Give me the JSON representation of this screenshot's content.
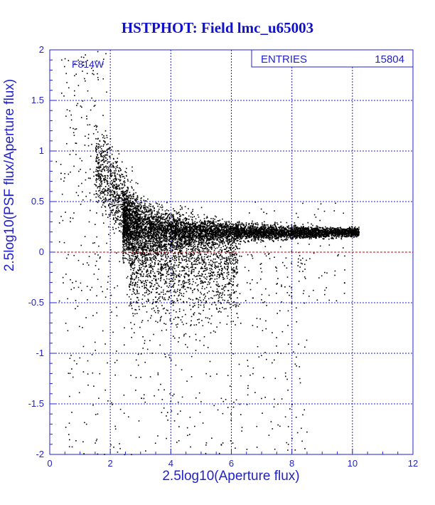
{
  "chart_data": {
    "type": "scatter",
    "title": "HSTPHOT: Field lmc_u65003",
    "xlabel": "2.5log10(Aperture flux)",
    "ylabel": "2.5log10(PSF flux/Aperture flux)",
    "xlim": [
      0,
      12
    ],
    "ylim": [
      -2,
      2
    ],
    "xticks": [
      "0",
      "2",
      "4",
      "6",
      "8",
      "10",
      "12"
    ],
    "yticks": [
      "-2",
      "-1.5",
      "-1",
      "-0.5",
      "0",
      "0.5",
      "1",
      "1.5",
      "2"
    ],
    "grid": true,
    "filter_label": "F814W",
    "stats": {
      "label": "ENTRIES",
      "value": "15804"
    },
    "reference_line": {
      "y": 0,
      "color": "#cc0000",
      "style": "dashed"
    },
    "points_summary": {
      "count": 15804,
      "description": "dense band near y=0.2 from x=2.5 to x=10.2, upturn to y~1 near x=2, scattered faint points below to y=-2"
    },
    "sample_points": [
      [
        0.6,
        1.9
      ],
      [
        0.8,
        1.75
      ],
      [
        1.0,
        1.45
      ],
      [
        1.2,
        1.35
      ],
      [
        1.6,
        1.05
      ],
      [
        1.8,
        0.95
      ],
      [
        2.0,
        0.8
      ],
      [
        2.2,
        0.6
      ],
      [
        2.5,
        0.45
      ],
      [
        3.0,
        0.3
      ],
      [
        4.0,
        0.25
      ],
      [
        5.0,
        0.22
      ],
      [
        6.0,
        0.2
      ],
      [
        7.0,
        0.18
      ],
      [
        8.0,
        0.17
      ],
      [
        9.0,
        0.17
      ],
      [
        10.0,
        0.18
      ],
      [
        10.2,
        0.2
      ],
      [
        3.5,
        -0.3
      ],
      [
        4.0,
        -0.5
      ],
      [
        4.5,
        -0.7
      ],
      [
        5.5,
        -1.2
      ],
      [
        6.5,
        -1.5
      ],
      [
        2.0,
        -1.9
      ],
      [
        1.5,
        -1.6
      ],
      [
        3.0,
        -1.0
      ],
      [
        7.5,
        -0.6
      ],
      [
        1.0,
        -0.3
      ],
      [
        0.5,
        0.4
      ],
      [
        0.2,
        0.9
      ]
    ],
    "colors": {
      "axes": "#2222cc",
      "grid": "#2222cc",
      "points": "#000000",
      "title": "#1111cc",
      "reference_line": "#cc0000"
    }
  }
}
